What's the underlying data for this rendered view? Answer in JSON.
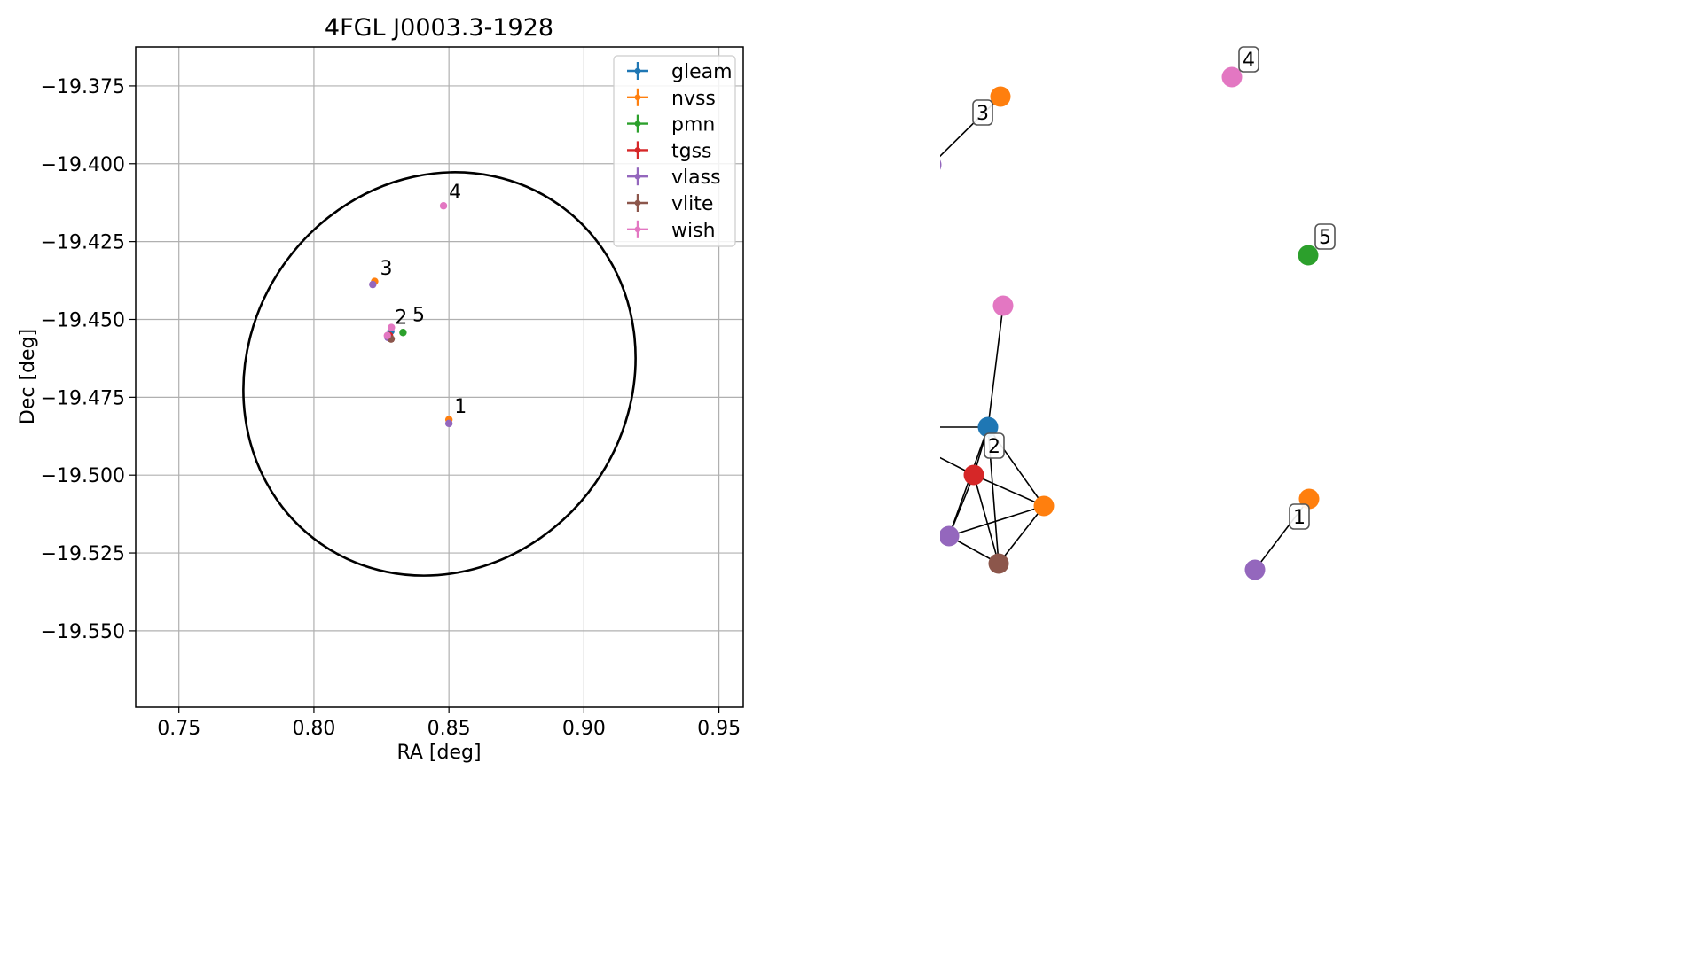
{
  "chart_data": [
    {
      "type": "scatter",
      "title": "4FGL J0003.3-1928",
      "xlabel": "RA [deg]",
      "ylabel": "Dec [deg]",
      "xlim": [
        0.734,
        0.959
      ],
      "ylim": [
        -19.5745,
        -19.3625
      ],
      "grid": true,
      "legend_position": "upper right",
      "x_ticks": [
        0.75,
        0.8,
        0.85,
        0.9,
        0.95
      ],
      "x_tick_labels": [
        "0.75",
        "0.80",
        "0.85",
        "0.90",
        "0.95"
      ],
      "y_ticks": [
        -19.375,
        -19.4,
        -19.425,
        -19.45,
        -19.475,
        -19.5,
        -19.525,
        -19.55
      ],
      "y_tick_labels": [
        "−19.375",
        "−19.400",
        "−19.425",
        "−19.450",
        "−19.475",
        "−19.500",
        "−19.525",
        "−19.550"
      ],
      "series": [
        {
          "name": "gleam",
          "color": "#1f77b4",
          "points": [
            {
              "x": 0.8285,
              "y": -19.4538
            }
          ]
        },
        {
          "name": "nvss",
          "color": "#ff7f0e",
          "points": [
            {
              "x": 0.85,
              "y": -19.4822
            },
            {
              "x": 0.8225,
              "y": -19.4378
            }
          ]
        },
        {
          "name": "pmn",
          "color": "#2ca02c",
          "points": [
            {
              "x": 0.833,
              "y": -19.4542
            }
          ]
        },
        {
          "name": "tgss",
          "color": "#d62728",
          "points": [
            {
              "x": 0.828,
              "y": -19.4552
            }
          ]
        },
        {
          "name": "vlass",
          "color": "#9467bd",
          "points": [
            {
              "x": 0.85,
              "y": -19.4834
            },
            {
              "x": 0.8218,
              "y": -19.4388
            },
            {
              "x": 0.8274,
              "y": -19.4558
            }
          ]
        },
        {
          "name": "vlite",
          "color": "#8c564b",
          "points": [
            {
              "x": 0.8286,
              "y": -19.4563
            }
          ]
        },
        {
          "name": "wish",
          "color": "#e377c2",
          "points": [
            {
              "x": 0.848,
              "y": -19.4135
            },
            {
              "x": 0.8287,
              "y": -19.4526
            },
            {
              "x": 0.8272,
              "y": -19.4552
            }
          ]
        }
      ],
      "annotations": [
        {
          "text": "1",
          "x": 0.852,
          "y": -19.48
        },
        {
          "text": "2",
          "x": 0.83,
          "y": -19.4514
        },
        {
          "text": "5",
          "x": 0.8365,
          "y": -19.4506
        },
        {
          "text": "3",
          "x": 0.8245,
          "y": -19.4356
        },
        {
          "text": "4",
          "x": 0.85,
          "y": -19.4111
        }
      ],
      "ellipse": {
        "center_x": 0.8465,
        "center_y": -19.4675,
        "semi_axis_a_deg": 0.0705,
        "semi_axis_b_deg": 0.0665,
        "rotation_deg": 35,
        "color": "#000000"
      }
    },
    {
      "type": "network",
      "nodes": [
        {
          "id": "n1a",
          "color": "#ff7f0e"
        },
        {
          "id": "n1b",
          "color": "#9467bd"
        },
        {
          "id": "n3a",
          "color": "#ff7f0e"
        },
        {
          "id": "n3b",
          "color": "#9467bd"
        },
        {
          "id": "n4",
          "color": "#e377c2"
        },
        {
          "id": "n5",
          "color": "#2ca02c"
        },
        {
          "id": "g",
          "color": "#1f77b4"
        },
        {
          "id": "w1",
          "color": "#e377c2"
        },
        {
          "id": "w2",
          "color": "#e377c2"
        },
        {
          "id": "t",
          "color": "#d62728"
        },
        {
          "id": "nv",
          "color": "#ff7f0e"
        },
        {
          "id": "vl",
          "color": "#9467bd"
        },
        {
          "id": "vt",
          "color": "#8c564b"
        }
      ],
      "edges": [
        [
          "n1a",
          "n1b"
        ],
        [
          "n3a",
          "n3b"
        ],
        [
          "g",
          "w1"
        ],
        [
          "g",
          "w2"
        ],
        [
          "g",
          "t"
        ],
        [
          "g",
          "nv"
        ],
        [
          "g",
          "vl"
        ],
        [
          "g",
          "vt"
        ],
        [
          "w2",
          "t"
        ],
        [
          "t",
          "nv"
        ],
        [
          "t",
          "vl"
        ],
        [
          "t",
          "vt"
        ],
        [
          "nv",
          "vl"
        ],
        [
          "nv",
          "vt"
        ],
        [
          "vl",
          "vt"
        ]
      ],
      "cluster_labels": [
        "1",
        "2",
        "3",
        "4",
        "5"
      ]
    }
  ]
}
